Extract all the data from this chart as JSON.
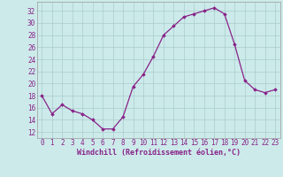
{
  "hours": [
    0,
    1,
    2,
    3,
    4,
    5,
    6,
    7,
    8,
    9,
    10,
    11,
    12,
    13,
    14,
    15,
    16,
    17,
    18,
    19,
    20,
    21,
    22,
    23
  ],
  "values": [
    18,
    15,
    16.5,
    15.5,
    15,
    14,
    12.5,
    12.5,
    14.5,
    19.5,
    21.5,
    24.5,
    28,
    29.5,
    31,
    31.5,
    32,
    32.5,
    31.5,
    26.5,
    20.5,
    19,
    18.5,
    19
  ],
  "line_color": "#882288",
  "marker": "D",
  "marker_size": 1.8,
  "bg_color": "#cceaea",
  "grid_color": "#aacccc",
  "tick_label_color": "#882288",
  "xlabel": "Windchill (Refroidissement éolien,°C)",
  "xlabel_color": "#882288",
  "xlabel_fontsize": 6.0,
  "ylabel_ticks": [
    12,
    14,
    16,
    18,
    20,
    22,
    24,
    26,
    28,
    30,
    32
  ],
  "ylim": [
    11.0,
    33.5
  ],
  "xlim": [
    -0.5,
    23.5
  ],
  "tick_fontsize": 5.5,
  "linewidth": 0.9
}
